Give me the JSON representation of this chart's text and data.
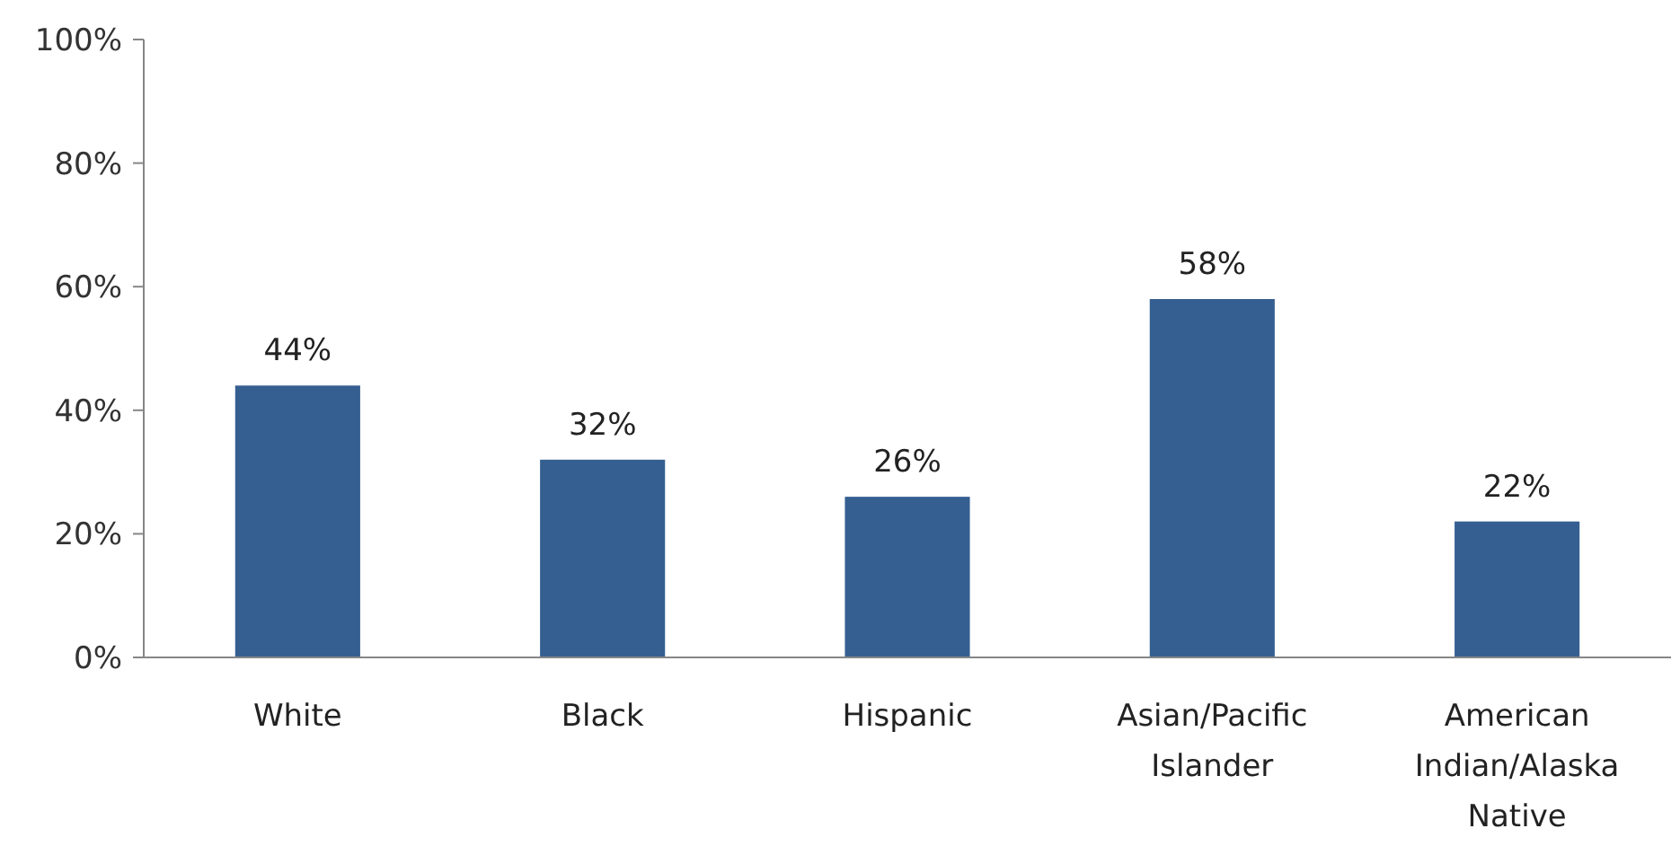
{
  "chart_data": {
    "type": "bar",
    "categories": [
      "White",
      "Black",
      "Hispanic",
      "Asian/Pacific Islander",
      "American Indian/Alaska Native"
    ],
    "values": [
      44,
      32,
      26,
      58,
      22
    ],
    "color": "#355f91",
    "ylim": [
      0,
      100
    ],
    "yticks": [
      {
        "value": 0,
        "label": "0%"
      },
      {
        "value": 20,
        "label": "20%"
      },
      {
        "value": 40,
        "label": "40%"
      },
      {
        "value": 60,
        "label": "60%"
      },
      {
        "value": 80,
        "label": "80%"
      },
      {
        "value": 100,
        "label": "100%"
      }
    ],
    "value_labels": [
      "44%",
      "32%",
      "26%",
      "58%",
      "22%"
    ],
    "grid": false
  }
}
